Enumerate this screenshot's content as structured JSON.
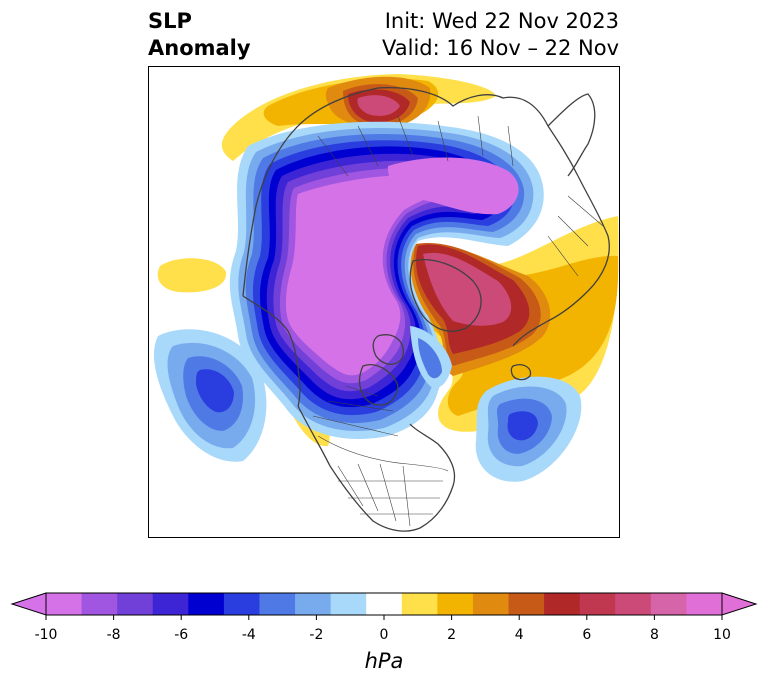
{
  "title": {
    "left_line1": "SLP",
    "left_line2": "Anomaly",
    "right_line1": "Init: Wed 22 Nov 2023",
    "right_line2": "Valid: 16 Nov – 22 Nov"
  },
  "colorbar": {
    "unit": "hPa",
    "ticks": [
      "-10",
      "-8",
      "-6",
      "-4",
      "-2",
      "0",
      "2",
      "4",
      "6",
      "8",
      "10"
    ],
    "min": -10,
    "max": 10,
    "extend": "both",
    "colors": [
      "#d672e8",
      "#a056e0",
      "#7040d8",
      "#3d25d6",
      "#0000d0",
      "#2a3ee0",
      "#4f7ae6",
      "#78aaee",
      "#a8d8fa",
      "#ffffff",
      "#ffe04a",
      "#f2b400",
      "#e08a10",
      "#c85a18",
      "#b02828",
      "#c03850",
      "#cc4a78",
      "#d664a8",
      "#e070d8"
    ],
    "under_color": "#d672e8",
    "over_color": "#e070d8"
  },
  "map": {
    "projection": "north-polar-stereographic",
    "anomaly_features": [
      {
        "name": "arctic-low",
        "sign": "negative",
        "level": -10
      },
      {
        "name": "northeast-pacific-low",
        "sign": "negative",
        "level": -6
      },
      {
        "name": "north-atlantic-low",
        "sign": "negative",
        "level": -6
      },
      {
        "name": "siberia-high",
        "sign": "positive",
        "level": 8
      },
      {
        "name": "greenland-high",
        "sign": "positive",
        "level": 8
      },
      {
        "name": "mediterranean-high",
        "sign": "positive",
        "level": 6
      },
      {
        "name": "alaska-high",
        "sign": "positive",
        "level": 4
      }
    ]
  }
}
